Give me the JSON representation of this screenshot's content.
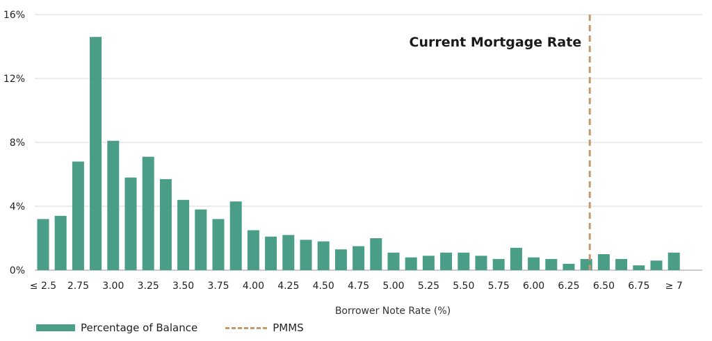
{
  "chart_data": {
    "type": "bar",
    "title": "",
    "xlabel": "Borrower Note Rate (%)",
    "ylabel": "",
    "ylim": [
      0,
      16
    ],
    "yticks": [
      "0%",
      "4%",
      "8%",
      "12%",
      "16%"
    ],
    "ytick_values": [
      0,
      4,
      8,
      12,
      16
    ],
    "categories": [
      "≤ 2.5",
      "2.625",
      "2.75",
      "2.875",
      "3.00",
      "3.125",
      "3.25",
      "3.375",
      "3.50",
      "3.625",
      "3.75",
      "3.875",
      "4.00",
      "4.125",
      "4.25",
      "4.375",
      "4.50",
      "4.625",
      "4.75",
      "4.875",
      "5.00",
      "5.125",
      "5.25",
      "5.375",
      "5.50",
      "5.625",
      "5.75",
      "5.875",
      "6.00",
      "6.125",
      "6.25",
      "6.375",
      "6.50",
      "6.625",
      "6.75",
      "6.875",
      "≥ 7"
    ],
    "xtick_labels": [
      "≤ 2.5",
      "",
      "2.75",
      "",
      "3.00",
      "",
      "3.25",
      "",
      "3.50",
      "",
      "3.75",
      "",
      "4.00",
      "",
      "4.25",
      "",
      "4.50",
      "",
      "4.75",
      "",
      "5.00",
      "",
      "5.25",
      "",
      "5.50",
      "",
      "5.75",
      "",
      "6.00",
      "",
      "6.25",
      "",
      "6.50",
      "",
      "6.75",
      "",
      "≥ 7"
    ],
    "series": [
      {
        "name": "Percentage of Balance",
        "color": "#4a9e88",
        "values": [
          3.2,
          3.4,
          6.8,
          14.6,
          8.1,
          5.8,
          7.1,
          5.7,
          4.4,
          3.8,
          3.2,
          4.3,
          2.5,
          2.1,
          2.2,
          1.9,
          1.8,
          1.3,
          1.5,
          2.0,
          1.1,
          0.8,
          0.9,
          1.1,
          1.1,
          0.9,
          0.7,
          1.4,
          0.8,
          0.7,
          0.4,
          0.7,
          1.0,
          0.7,
          0.3,
          0.6,
          1.1
        ]
      }
    ],
    "reference_line": {
      "name": "PMMS",
      "x": 6.4,
      "color": "#c49a6c",
      "style": "dashed",
      "label": "Current Mortgage Rate"
    },
    "legend": {
      "placement": "bottom-left",
      "items": [
        {
          "label": "Percentage of Balance",
          "kind": "bar",
          "color": "#4a9e88"
        },
        {
          "label": "PMMS",
          "kind": "dashed-line",
          "color": "#c49a6c"
        }
      ]
    },
    "grid": true
  }
}
